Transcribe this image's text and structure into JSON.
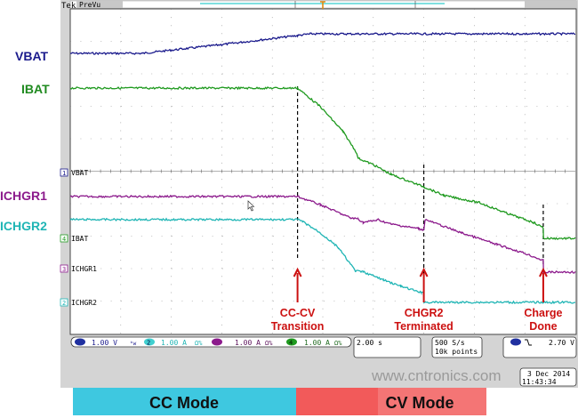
{
  "header": {
    "brand": "Tek",
    "mode": "PreVu"
  },
  "colors": {
    "VBAT": "#1a1a8c",
    "IBAT": "#1f9a1f",
    "ICHGR1": "#8c1a8c",
    "ICHGR2": "#1fb5b5",
    "annotation": "#cc1010",
    "cc_mode": "#3ec8e0",
    "cv_mode": "#f25a5a"
  },
  "chart_data": {
    "type": "line",
    "title": "",
    "x_unit": "s",
    "xlim": [
      0,
      20
    ],
    "ylim_div": [
      -5,
      5
    ],
    "grid": true,
    "series": [
      {
        "name": "VBAT",
        "channel": "1",
        "scale": "1.00 V",
        "ground_label": "VBAT",
        "points": [
          [
            0,
            3.63
          ],
          [
            2.85,
            3.63
          ],
          [
            6,
            3.9
          ],
          [
            9.0,
            4.18
          ],
          [
            9.5,
            4.23
          ],
          [
            20,
            4.23
          ]
        ]
      },
      {
        "name": "IBAT",
        "channel": "4",
        "scale": "1.00 A",
        "ground_label": "IBAT",
        "points": [
          [
            0,
            2.56
          ],
          [
            9.0,
            2.56
          ],
          [
            9.9,
            1.99
          ],
          [
            10.8,
            1.22
          ],
          [
            11.3,
            0.62
          ],
          [
            11.4,
            0.4
          ],
          [
            12.0,
            0.2
          ],
          [
            12.7,
            -0.1
          ],
          [
            14.0,
            -0.48
          ],
          [
            14.8,
            -0.75
          ],
          [
            16.2,
            -0.97
          ],
          [
            17.3,
            -1.3
          ],
          [
            18.35,
            -1.58
          ],
          [
            18.73,
            -1.74
          ],
          [
            18.74,
            -2.07
          ],
          [
            20,
            -2.07
          ]
        ]
      },
      {
        "name": "ICHGR1",
        "channel": "3",
        "scale": "1.00 A",
        "ground_label": "ICHGR1",
        "points": [
          [
            0,
            -0.78
          ],
          [
            9.0,
            -0.78
          ],
          [
            9.9,
            -1.03
          ],
          [
            11.1,
            -1.44
          ],
          [
            11.4,
            -1.47
          ],
          [
            11.6,
            -1.58
          ],
          [
            12.2,
            -1.5
          ],
          [
            12.7,
            -1.63
          ],
          [
            13.8,
            -1.77
          ],
          [
            14.0,
            -1.8
          ],
          [
            14.05,
            -1.49
          ],
          [
            15.5,
            -1.9
          ],
          [
            16.9,
            -2.26
          ],
          [
            18.0,
            -2.53
          ],
          [
            18.73,
            -2.75
          ],
          [
            18.74,
            -3.11
          ],
          [
            20,
            -3.11
          ]
        ]
      },
      {
        "name": "ICHGR2",
        "channel": "2",
        "scale": "1.00 A",
        "ground_label": "ICHGR2",
        "points": [
          [
            0,
            -1.49
          ],
          [
            9.0,
            -1.49
          ],
          [
            9.2,
            -1.55
          ],
          [
            9.9,
            -1.9
          ],
          [
            10.6,
            -2.34
          ],
          [
            11.3,
            -3.08
          ],
          [
            11.6,
            -3.1
          ],
          [
            12.4,
            -3.35
          ],
          [
            13.1,
            -3.55
          ],
          [
            13.9,
            -3.74
          ],
          [
            14.0,
            -3.77
          ],
          [
            14.01,
            -4.04
          ],
          [
            20,
            -4.04
          ]
        ]
      }
    ],
    "annotations": [
      {
        "t": 9.0,
        "lines": [
          "CC-CV",
          "Transition"
        ]
      },
      {
        "t": 14.0,
        "lines": [
          "CHGR2",
          "Terminated"
        ]
      },
      {
        "t": 18.73,
        "lines": [
          "Charge",
          "Done"
        ]
      }
    ]
  },
  "status": {
    "ch1": {
      "num": "1",
      "scale": "1.00 V",
      "suffix": "ᵇw"
    },
    "ch2": {
      "num": "2",
      "scale": "1.00 A",
      "suffix": "Ω%"
    },
    "ch3": {
      "num": "3",
      "scale": "1.00 A",
      "suffix": "Ω%"
    },
    "ch4": {
      "num": "4",
      "scale": "1.00 A",
      "suffix": "Ω%"
    },
    "timebase": "2.00 s",
    "sample_rate": "500 S/s",
    "record_length": "10k points",
    "trigger": {
      "source": "1",
      "slope": "falling",
      "level": "2.70 V"
    },
    "date": "3 Dec  2014",
    "time": "11:43:34"
  },
  "side_labels": [
    "VBAT",
    "IBAT",
    "ICHGR1",
    "ICHGR2"
  ],
  "modes": {
    "cc": "CC Mode",
    "cv": "CV Mode"
  },
  "watermark": "www.cntronics.com"
}
